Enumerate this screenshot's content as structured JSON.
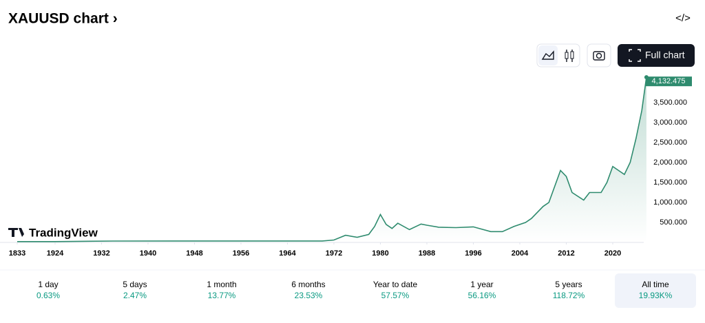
{
  "header": {
    "title": "XAUUSD chart ›",
    "full_chart": "Full chart",
    "watermark": "TradingView"
  },
  "chart_data": {
    "type": "area",
    "color": "#2e8b6e",
    "x": [
      1833,
      1924,
      1934,
      1970,
      1972,
      1974,
      1976,
      1978,
      1979,
      1980,
      1981,
      1982,
      1983,
      1985,
      1987,
      1988,
      1990,
      1993,
      1996,
      1999,
      2001,
      2003,
      2005,
      2006,
      2008,
      2009,
      2011,
      2012,
      2013,
      2015,
      2016,
      2018,
      2019,
      2020,
      2021,
      2022,
      2023,
      2024,
      2025,
      2025.8
    ],
    "series": [
      {
        "name": "XAUUSD",
        "color": "#2e8b6e",
        "values": [
          20,
          20,
          35,
          36,
          60,
          180,
          130,
          200,
          400,
          700,
          450,
          350,
          480,
          320,
          460,
          430,
          380,
          370,
          390,
          270,
          270,
          400,
          500,
          600,
          900,
          1000,
          1800,
          1650,
          1250,
          1060,
          1250,
          1250,
          1500,
          1900,
          1800,
          1700,
          2000,
          2600,
          3300,
          4132.475
        ],
        "value_labels": [
          null,
          null,
          null,
          null,
          null,
          null,
          null,
          null,
          null,
          null,
          null,
          null,
          null,
          null,
          null,
          null,
          null,
          null,
          null,
          null,
          null,
          null,
          null,
          null,
          null,
          null,
          null,
          null,
          null,
          null,
          null,
          null,
          null,
          null,
          null,
          null,
          null,
          null,
          null,
          "4,132.475"
        ]
      }
    ],
    "xticks": [
      1833,
      1924,
      1932,
      1940,
      1948,
      1956,
      1964,
      1972,
      1980,
      1988,
      1996,
      2004,
      2012,
      2020
    ],
    "ylim": [
      0,
      4170
    ],
    "yticks": [
      {
        "value": 500,
        "label": "500.000"
      },
      {
        "value": 1000,
        "label": "1,000.000"
      },
      {
        "value": 1500,
        "label": "1,500.000"
      },
      {
        "value": 2000,
        "label": "2,000.000"
      },
      {
        "value": 2500,
        "label": "2,500.000"
      },
      {
        "value": 3000,
        "label": "3,000.000"
      },
      {
        "value": 3500,
        "label": "3,500.000"
      }
    ]
  },
  "periods": [
    {
      "name": "1 day",
      "change": "0.63%"
    },
    {
      "name": "5 days",
      "change": "2.47%"
    },
    {
      "name": "1 month",
      "change": "13.77%"
    },
    {
      "name": "6 months",
      "change": "23.53%"
    },
    {
      "name": "Year to date",
      "change": "57.57%"
    },
    {
      "name": "1 year",
      "change": "56.16%"
    },
    {
      "name": "5 years",
      "change": "118.72%"
    },
    {
      "name": "All time",
      "change": "19.93K%"
    }
  ],
  "selected_period": 7
}
